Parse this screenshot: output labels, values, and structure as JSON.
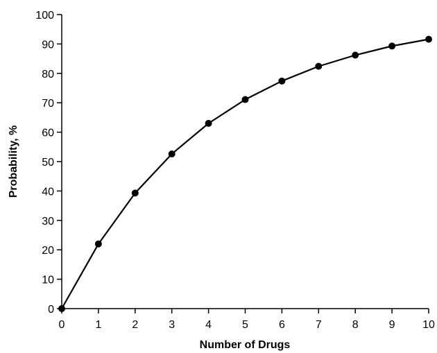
{
  "chart_data": {
    "type": "line",
    "title": "",
    "xlabel": "Number of Drugs",
    "ylabel": "Probability, %",
    "xlim": [
      0,
      10
    ],
    "ylim": [
      0,
      100
    ],
    "x_ticks": [
      0,
      1,
      2,
      3,
      4,
      5,
      6,
      7,
      8,
      9,
      10
    ],
    "y_ticks": [
      0,
      10,
      20,
      30,
      40,
      50,
      60,
      70,
      80,
      90,
      100
    ],
    "grid": false,
    "series": [
      {
        "x": [
          0,
          1,
          2,
          3,
          4,
          5,
          6,
          7,
          8,
          9,
          10
        ],
        "values": [
          0,
          22,
          39.3,
          52.6,
          63,
          71.1,
          77.4,
          82.4,
          86.2,
          89.3,
          91.6
        ],
        "color": "#000000",
        "marker": "circle"
      }
    ]
  }
}
